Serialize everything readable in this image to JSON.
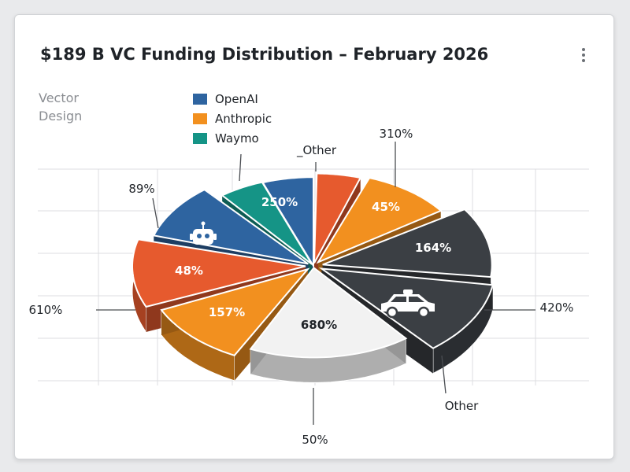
{
  "header": {
    "title": "$189 B VC Funding Distribution – February 2026",
    "subtitle_line1": "Vector",
    "subtitle_line2": "Design",
    "menu_icon": "more-vertical-icon"
  },
  "legend": [
    {
      "label": "OpenAI",
      "color": "#2e64a0"
    },
    {
      "label": "Anthropic",
      "color": "#f2901f"
    },
    {
      "label": "Waymo",
      "color": "#159486"
    }
  ],
  "chart_data": {
    "type": "pie",
    "style": "3d-exploded",
    "title": "$189 B VC Funding Distribution – February 2026",
    "legend_placement": "top-left",
    "grid": true,
    "slices": [
      {
        "label": "250%",
        "color": "#2e64a0"
      },
      {
        "label": "",
        "color": "#e65a2e"
      },
      {
        "label": "45%",
        "color": "#f2901f"
      },
      {
        "label": "164%",
        "color": "#3b3f44",
        "icon": "robot-icon-none"
      },
      {
        "label": "",
        "color": "#3b3f44",
        "icon": "car-icon"
      },
      {
        "label": "680%",
        "color": "#f2f2f2"
      },
      {
        "label": "157%",
        "color": "#f2901f"
      },
      {
        "label": "48%",
        "color": "#e65a2e"
      },
      {
        "label": "",
        "color": "#2e64a0",
        "icon": "robot-icon"
      },
      {
        "label": "",
        "color": "#159486"
      }
    ],
    "callouts": [
      {
        "label": "_Other"
      },
      {
        "label": "310%"
      },
      {
        "label": "89%"
      },
      {
        "label": "610%"
      },
      {
        "label": "420%"
      },
      {
        "label": "Other"
      },
      {
        "label": "50%"
      }
    ]
  }
}
